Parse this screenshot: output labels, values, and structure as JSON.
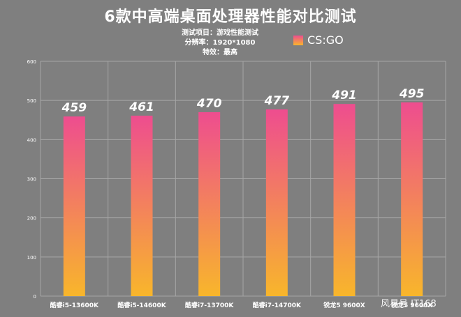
{
  "title": "6款中高端桌面处理器性能对比测试",
  "subtitles": [
    "测试项目：游戏性能测试",
    "分辨率：1920*1080",
    "特效：最高"
  ],
  "watermark": "风易号 IT168",
  "colors": {
    "bar_top": "#ee4d8f",
    "bar_bottom": "#f8b62b",
    "background": "#7f7f7f",
    "grid": "#a6a6a6"
  },
  "chart_data": {
    "type": "bar",
    "categories": [
      "酷睿i5-13600K",
      "酷睿i5-14600K",
      "酷睿i7-13700K",
      "酷睿i7-14700K",
      "锐龙5 9600X",
      "锐龙5 9600X"
    ],
    "series": [
      {
        "name": "CS:GO",
        "values": [
          459,
          461,
          470,
          477,
          491,
          495
        ]
      }
    ],
    "data_labels": [
      "459",
      "461",
      "470",
      "477",
      "491",
      "495"
    ],
    "yticks": [
      "0",
      "100",
      "200",
      "300",
      "400",
      "500",
      "600"
    ],
    "ylim": [
      0,
      600
    ],
    "grid": true,
    "legend_position": "top-right"
  }
}
